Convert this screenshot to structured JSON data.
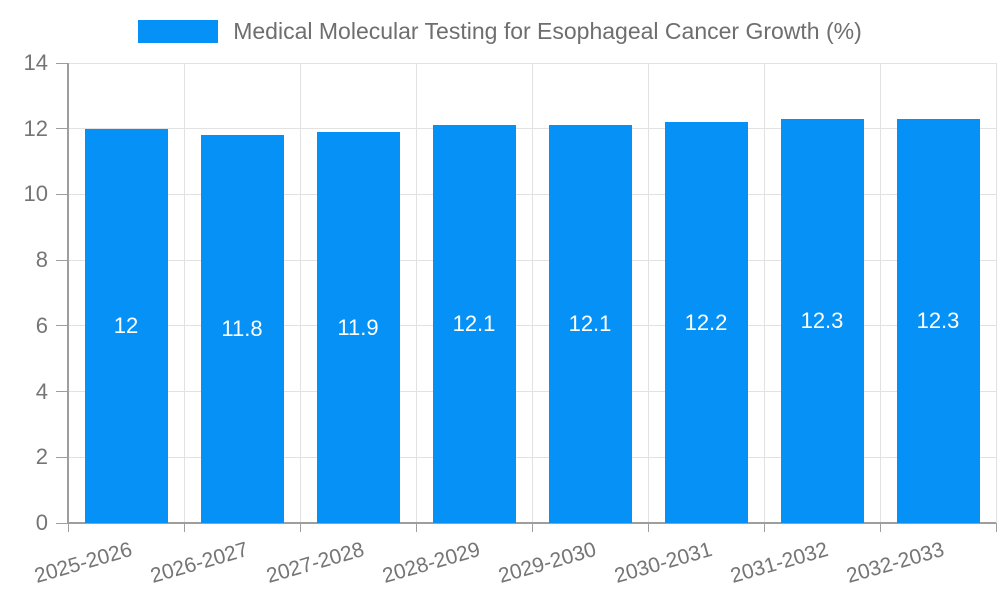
{
  "chart_data": {
    "type": "bar",
    "title": "Medical Molecular Testing for Esophageal Cancer Growth (%)",
    "categories": [
      "2025-2026",
      "2026-2027",
      "2027-2028",
      "2028-2029",
      "2029-2030",
      "2030-2031",
      "2031-2032",
      "2032-2033"
    ],
    "values": [
      12,
      11.8,
      11.9,
      12.1,
      12.1,
      12.2,
      12.3,
      12.3
    ],
    "value_labels": [
      "12",
      "11.8",
      "11.9",
      "12.1",
      "12.1",
      "12.2",
      "12.3",
      "12.3"
    ],
    "xlabel": "",
    "ylabel": "",
    "ylim": [
      0,
      14
    ],
    "yticks": [
      0,
      2,
      4,
      6,
      8,
      10,
      12,
      14
    ],
    "ytick_labels": [
      "0",
      "2",
      "4",
      "6",
      "8",
      "10",
      "12",
      "14"
    ],
    "grid": true,
    "legend_position": "top-center",
    "colors": {
      "bar": "#0591f5",
      "bar_label": "#ffffff",
      "grid": "#e2e2e2",
      "axis": "#9e9e9e",
      "tick_label": "#757575",
      "title": "#6e6e6e",
      "background": "#ffffff"
    }
  }
}
